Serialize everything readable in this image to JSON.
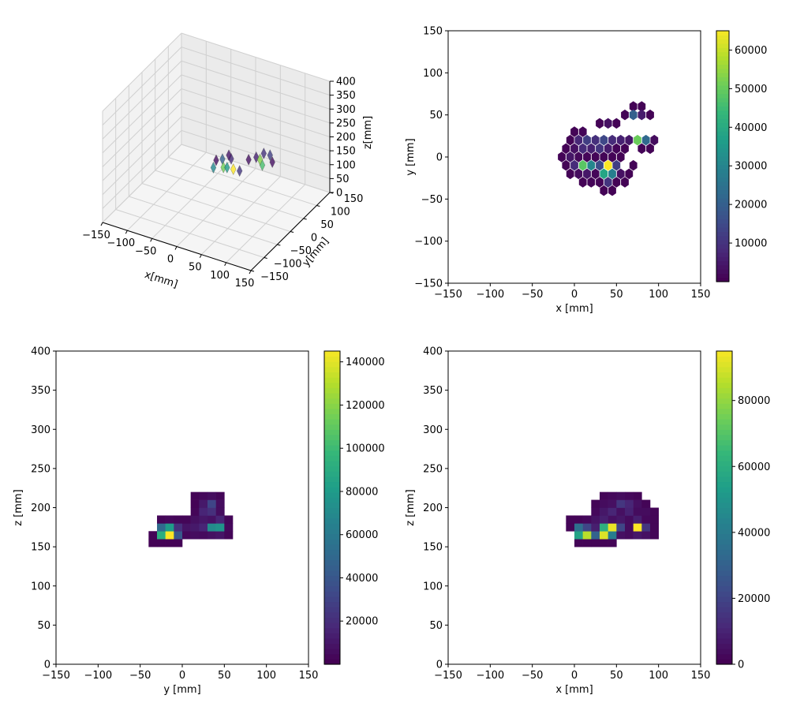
{
  "chart_data": [
    {
      "type": "scatter3d",
      "title": "",
      "xlabel": "x[mm]",
      "ylabel": "y[mm]",
      "zlabel": "z[mm]",
      "xlim": [
        -150,
        150
      ],
      "ylim": [
        -150,
        150
      ],
      "zlim": [
        0,
        400
      ],
      "xticks": [
        -150,
        -100,
        -50,
        0,
        50,
        100,
        150
      ],
      "yticks": [
        -150,
        -100,
        -50,
        0,
        50,
        100,
        150
      ],
      "zticks": [
        0,
        50,
        100,
        150,
        200,
        250,
        300,
        350,
        400
      ],
      "points": [
        {
          "x": 0,
          "y": 0,
          "z": 170,
          "v": 2000
        },
        {
          "x": 10,
          "y": 5,
          "z": 175,
          "v": 20000
        },
        {
          "x": 20,
          "y": -10,
          "z": 165,
          "v": 50000
        },
        {
          "x": 30,
          "y": -15,
          "z": 175,
          "v": 35000
        },
        {
          "x": 40,
          "y": -10,
          "z": 170,
          "v": 64000
        },
        {
          "x": 50,
          "y": -5,
          "z": 165,
          "v": 10000
        },
        {
          "x": 25,
          "y": 10,
          "z": 180,
          "v": 8000
        },
        {
          "x": 55,
          "y": 20,
          "z": 185,
          "v": 3000
        },
        {
          "x": 65,
          "y": 30,
          "z": 190,
          "v": 6000
        },
        {
          "x": 75,
          "y": 40,
          "z": 200,
          "v": 9000
        },
        {
          "x": 85,
          "y": 45,
          "z": 195,
          "v": 12000
        },
        {
          "x": 95,
          "y": 35,
          "z": 185,
          "v": 3000
        },
        {
          "x": 80,
          "y": 25,
          "z": 175,
          "v": 45000
        },
        {
          "x": 70,
          "y": 35,
          "z": 180,
          "v": 52000
        },
        {
          "x": 5,
          "y": -20,
          "z": 165,
          "v": 30000
        },
        {
          "x": 15,
          "y": 20,
          "z": 178,
          "v": 4000
        }
      ]
    },
    {
      "type": "hexbin",
      "xlabel": "x [mm]",
      "ylabel": "y [mm]",
      "xlim": [
        -150,
        150
      ],
      "ylim": [
        -150,
        150
      ],
      "xticks": [
        -150,
        -100,
        -50,
        0,
        50,
        100,
        150
      ],
      "yticks": [
        -150,
        -100,
        -50,
        0,
        50,
        100,
        150
      ],
      "colorbar": {
        "min": 0,
        "max": 65000,
        "ticks": [
          10000,
          20000,
          30000,
          40000,
          50000,
          60000
        ]
      },
      "cells": [
        {
          "x": 0,
          "y": 30,
          "v": 500
        },
        {
          "x": 10,
          "y": 30,
          "v": 800
        },
        {
          "x": 30,
          "y": 40,
          "v": 600
        },
        {
          "x": 40,
          "y": 40,
          "v": 3000
        },
        {
          "x": 50,
          "y": 40,
          "v": 500
        },
        {
          "x": 70,
          "y": 60,
          "v": 500
        },
        {
          "x": 80,
          "y": 60,
          "v": 500
        },
        {
          "x": 60,
          "y": 50,
          "v": 600
        },
        {
          "x": 70,
          "y": 50,
          "v": 20000
        },
        {
          "x": 80,
          "y": 50,
          "v": 5000
        },
        {
          "x": 90,
          "y": 50,
          "v": 500
        },
        {
          "x": -5,
          "y": 20,
          "v": 500
        },
        {
          "x": 5,
          "y": 20,
          "v": 7000
        },
        {
          "x": 15,
          "y": 20,
          "v": 12000
        },
        {
          "x": 25,
          "y": 20,
          "v": 9000
        },
        {
          "x": 35,
          "y": 20,
          "v": 14000
        },
        {
          "x": 45,
          "y": 20,
          "v": 8000
        },
        {
          "x": 55,
          "y": 20,
          "v": 6000
        },
        {
          "x": 65,
          "y": 20,
          "v": 4000
        },
        {
          "x": 75,
          "y": 20,
          "v": 50000
        },
        {
          "x": 85,
          "y": 20,
          "v": 22000
        },
        {
          "x": 95,
          "y": 20,
          "v": 2000
        },
        {
          "x": -10,
          "y": 10,
          "v": 400
        },
        {
          "x": 0,
          "y": 10,
          "v": 3000
        },
        {
          "x": 10,
          "y": 10,
          "v": 8000
        },
        {
          "x": 20,
          "y": 10,
          "v": 6000
        },
        {
          "x": 30,
          "y": 10,
          "v": 10000
        },
        {
          "x": 40,
          "y": 10,
          "v": 5000
        },
        {
          "x": 50,
          "y": 10,
          "v": 800
        },
        {
          "x": 60,
          "y": 10,
          "v": 500
        },
        {
          "x": 80,
          "y": 10,
          "v": 600
        },
        {
          "x": 90,
          "y": 10,
          "v": 500
        },
        {
          "x": -15,
          "y": 0,
          "v": 600
        },
        {
          "x": -5,
          "y": 0,
          "v": 4000
        },
        {
          "x": 5,
          "y": 0,
          "v": 1500
        },
        {
          "x": 15,
          "y": 0,
          "v": 1000
        },
        {
          "x": 25,
          "y": 0,
          "v": 800
        },
        {
          "x": 35,
          "y": 0,
          "v": 700
        },
        {
          "x": 45,
          "y": 0,
          "v": 600
        },
        {
          "x": 55,
          "y": 0,
          "v": 500
        },
        {
          "x": -10,
          "y": -10,
          "v": 500
        },
        {
          "x": 0,
          "y": -10,
          "v": 8000
        },
        {
          "x": 10,
          "y": -10,
          "v": 48000
        },
        {
          "x": 20,
          "y": -10,
          "v": 30000
        },
        {
          "x": 30,
          "y": -10,
          "v": 15000
        },
        {
          "x": 40,
          "y": -10,
          "v": 65000
        },
        {
          "x": 50,
          "y": -10,
          "v": 12000
        },
        {
          "x": 70,
          "y": -10,
          "v": 600
        },
        {
          "x": -5,
          "y": -20,
          "v": 600
        },
        {
          "x": 5,
          "y": -20,
          "v": 2000
        },
        {
          "x": 15,
          "y": -20,
          "v": 4000
        },
        {
          "x": 25,
          "y": -20,
          "v": 1000
        },
        {
          "x": 35,
          "y": -20,
          "v": 38000
        },
        {
          "x": 45,
          "y": -20,
          "v": 28000
        },
        {
          "x": 55,
          "y": -20,
          "v": 3000
        },
        {
          "x": 65,
          "y": -20,
          "v": 500
        },
        {
          "x": 10,
          "y": -30,
          "v": 500
        },
        {
          "x": 20,
          "y": -30,
          "v": 800
        },
        {
          "x": 30,
          "y": -30,
          "v": 700
        },
        {
          "x": 40,
          "y": -30,
          "v": 10000
        },
        {
          "x": 50,
          "y": -30,
          "v": 500
        },
        {
          "x": 60,
          "y": -30,
          "v": 500
        },
        {
          "x": 35,
          "y": -40,
          "v": 400
        },
        {
          "x": 45,
          "y": -40,
          "v": 400
        }
      ]
    },
    {
      "type": "heatmap",
      "xlabel": "y [mm]",
      "ylabel": "z [mm]",
      "xlim": [
        -150,
        150
      ],
      "ylim": [
        0,
        400
      ],
      "xticks": [
        -150,
        -100,
        -50,
        0,
        50,
        100,
        150
      ],
      "yticks": [
        0,
        50,
        100,
        150,
        200,
        250,
        300,
        350,
        400
      ],
      "bin_width": 10,
      "colorbar": {
        "min": 0,
        "max": 145000,
        "ticks": [
          20000,
          40000,
          60000,
          80000,
          100000,
          120000,
          140000
        ]
      },
      "cells": [
        {
          "x": -40,
          "y": 150,
          "v": 1000
        },
        {
          "x": -30,
          "y": 150,
          "v": 1000
        },
        {
          "x": -20,
          "y": 150,
          "v": 1000
        },
        {
          "x": -10,
          "y": 150,
          "v": 1000
        },
        {
          "x": -40,
          "y": 160,
          "v": 1000
        },
        {
          "x": -30,
          "y": 160,
          "v": 90000
        },
        {
          "x": -20,
          "y": 160,
          "v": 145000
        },
        {
          "x": -10,
          "y": 160,
          "v": 40000
        },
        {
          "x": 0,
          "y": 160,
          "v": 3000
        },
        {
          "x": 10,
          "y": 160,
          "v": 5000
        },
        {
          "x": 20,
          "y": 160,
          "v": 4000
        },
        {
          "x": 30,
          "y": 160,
          "v": 6000
        },
        {
          "x": 40,
          "y": 160,
          "v": 8000
        },
        {
          "x": 50,
          "y": 160,
          "v": 2000
        },
        {
          "x": -30,
          "y": 170,
          "v": 50000
        },
        {
          "x": -20,
          "y": 170,
          "v": 80000
        },
        {
          "x": -10,
          "y": 170,
          "v": 20000
        },
        {
          "x": 0,
          "y": 170,
          "v": 8000
        },
        {
          "x": 10,
          "y": 170,
          "v": 10000
        },
        {
          "x": 20,
          "y": 170,
          "v": 15000
        },
        {
          "x": 30,
          "y": 170,
          "v": 70000
        },
        {
          "x": 40,
          "y": 170,
          "v": 75000
        },
        {
          "x": 50,
          "y": 170,
          "v": 3000
        },
        {
          "x": -30,
          "y": 180,
          "v": 2000
        },
        {
          "x": -20,
          "y": 180,
          "v": 3000
        },
        {
          "x": -10,
          "y": 180,
          "v": 2000
        },
        {
          "x": 0,
          "y": 180,
          "v": 2000
        },
        {
          "x": 10,
          "y": 180,
          "v": 6000
        },
        {
          "x": 20,
          "y": 180,
          "v": 9000
        },
        {
          "x": 30,
          "y": 180,
          "v": 7000
        },
        {
          "x": 40,
          "y": 180,
          "v": 15000
        },
        {
          "x": 50,
          "y": 180,
          "v": 2000
        },
        {
          "x": 10,
          "y": 190,
          "v": 2000
        },
        {
          "x": 20,
          "y": 190,
          "v": 15000
        },
        {
          "x": 30,
          "y": 190,
          "v": 20000
        },
        {
          "x": 40,
          "y": 190,
          "v": 5000
        },
        {
          "x": 10,
          "y": 200,
          "v": 1000
        },
        {
          "x": 20,
          "y": 200,
          "v": 10000
        },
        {
          "x": 30,
          "y": 200,
          "v": 30000
        },
        {
          "x": 40,
          "y": 200,
          "v": 5000
        },
        {
          "x": 10,
          "y": 210,
          "v": 1000
        },
        {
          "x": 20,
          "y": 210,
          "v": 3000
        },
        {
          "x": 30,
          "y": 210,
          "v": 5000
        },
        {
          "x": 40,
          "y": 210,
          "v": 2000
        }
      ]
    },
    {
      "type": "heatmap",
      "xlabel": "x [mm]",
      "ylabel": "z [mm]",
      "xlim": [
        -150,
        150
      ],
      "ylim": [
        0,
        400
      ],
      "xticks": [
        -150,
        -100,
        -50,
        0,
        50,
        100,
        150
      ],
      "yticks": [
        0,
        50,
        100,
        150,
        200,
        250,
        300,
        350,
        400
      ],
      "bin_width": 10,
      "colorbar": {
        "min": 0,
        "max": 95000,
        "ticks": [
          0,
          20000,
          40000,
          60000,
          80000
        ]
      },
      "cells": [
        {
          "x": 0,
          "y": 150,
          "v": 1000
        },
        {
          "x": 10,
          "y": 150,
          "v": 1000
        },
        {
          "x": 20,
          "y": 150,
          "v": 1000
        },
        {
          "x": 30,
          "y": 150,
          "v": 1000
        },
        {
          "x": 40,
          "y": 150,
          "v": 1000
        },
        {
          "x": 0,
          "y": 160,
          "v": 55000
        },
        {
          "x": 10,
          "y": 160,
          "v": 85000
        },
        {
          "x": 20,
          "y": 160,
          "v": 30000
        },
        {
          "x": 30,
          "y": 160,
          "v": 90000
        },
        {
          "x": 40,
          "y": 160,
          "v": 40000
        },
        {
          "x": 50,
          "y": 160,
          "v": 4000
        },
        {
          "x": 60,
          "y": 160,
          "v": 3000
        },
        {
          "x": 70,
          "y": 160,
          "v": 6000
        },
        {
          "x": 80,
          "y": 160,
          "v": 4000
        },
        {
          "x": 90,
          "y": 160,
          "v": 1000
        },
        {
          "x": -10,
          "y": 170,
          "v": 1000
        },
        {
          "x": 0,
          "y": 170,
          "v": 35000
        },
        {
          "x": 10,
          "y": 170,
          "v": 20000
        },
        {
          "x": 20,
          "y": 170,
          "v": 8000
        },
        {
          "x": 30,
          "y": 170,
          "v": 60000
        },
        {
          "x": 40,
          "y": 170,
          "v": 92000
        },
        {
          "x": 50,
          "y": 170,
          "v": 20000
        },
        {
          "x": 60,
          "y": 170,
          "v": 3000
        },
        {
          "x": 70,
          "y": 170,
          "v": 95000
        },
        {
          "x": 80,
          "y": 170,
          "v": 15000
        },
        {
          "x": 90,
          "y": 170,
          "v": 1000
        },
        {
          "x": -10,
          "y": 180,
          "v": 1000
        },
        {
          "x": 0,
          "y": 180,
          "v": 1000
        },
        {
          "x": 10,
          "y": 180,
          "v": 2000
        },
        {
          "x": 20,
          "y": 180,
          "v": 5000
        },
        {
          "x": 30,
          "y": 180,
          "v": 8000
        },
        {
          "x": 40,
          "y": 180,
          "v": 4000
        },
        {
          "x": 50,
          "y": 180,
          "v": 6000
        },
        {
          "x": 60,
          "y": 180,
          "v": 3000
        },
        {
          "x": 70,
          "y": 180,
          "v": 8000
        },
        {
          "x": 80,
          "y": 180,
          "v": 2000
        },
        {
          "x": 90,
          "y": 180,
          "v": 1000
        },
        {
          "x": 20,
          "y": 190,
          "v": 2000
        },
        {
          "x": 30,
          "y": 190,
          "v": 6000
        },
        {
          "x": 40,
          "y": 190,
          "v": 10000
        },
        {
          "x": 50,
          "y": 190,
          "v": 4000
        },
        {
          "x": 60,
          "y": 190,
          "v": 9000
        },
        {
          "x": 70,
          "y": 190,
          "v": 3000
        },
        {
          "x": 80,
          "y": 190,
          "v": 3000
        },
        {
          "x": 90,
          "y": 190,
          "v": 1000
        },
        {
          "x": 20,
          "y": 200,
          "v": 1000
        },
        {
          "x": 30,
          "y": 200,
          "v": 3000
        },
        {
          "x": 40,
          "y": 200,
          "v": 4000
        },
        {
          "x": 50,
          "y": 200,
          "v": 15000
        },
        {
          "x": 60,
          "y": 200,
          "v": 10000
        },
        {
          "x": 70,
          "y": 200,
          "v": 4000
        },
        {
          "x": 80,
          "y": 200,
          "v": 1000
        },
        {
          "x": 30,
          "y": 210,
          "v": 1000
        },
        {
          "x": 40,
          "y": 210,
          "v": 2000
        },
        {
          "x": 50,
          "y": 210,
          "v": 3000
        },
        {
          "x": 60,
          "y": 210,
          "v": 2000
        },
        {
          "x": 70,
          "y": 210,
          "v": 1000
        }
      ]
    }
  ]
}
